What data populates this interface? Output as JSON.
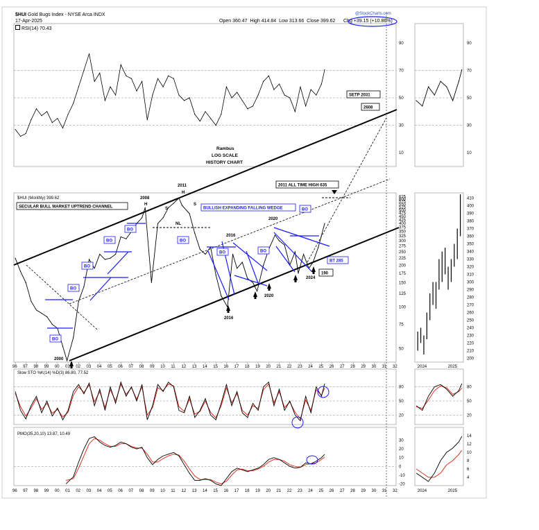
{
  "header": {
    "ticker": "$HUI",
    "name": "Gold Bugs Index - NYSE Arca",
    "exchange": "INDX",
    "date": "17-Apr-2025",
    "rsi_label": "RSI(14) 70.43",
    "open_label": "Open",
    "open": "360.47",
    "high_label": "High",
    "high": "414.84",
    "low_label": "Low",
    "low": "313.66",
    "close_label": "Close",
    "close": "399.62",
    "chg_label": "Chg",
    "chg": "+39.15 (+10.86%)",
    "watermark": "@StockCharts.com"
  },
  "colors": {
    "price": "#000000",
    "pattern_lines": "#1a1aff",
    "sto_d": "#e03020",
    "pmo_signal": "#e03020",
    "label_fill": "#ffffff"
  },
  "chart_data": [
    {
      "id": "rsi",
      "type": "line",
      "indicator": "RSI(14)",
      "value": 70.43,
      "ylim": [
        0,
        100
      ],
      "yticks": [
        10,
        30,
        50,
        70,
        90
      ],
      "reference_lines": [
        30,
        50,
        70
      ],
      "x": [
        1996,
        1996.5,
        1997,
        1997.5,
        1998,
        1998.5,
        1999,
        1999.5,
        2000,
        2000.5,
        2001,
        2001.5,
        2002,
        2002.5,
        2003,
        2003.5,
        2004,
        2004.5,
        2005,
        2005.5,
        2006,
        2006.5,
        2007,
        2007.5,
        2008,
        2008.5,
        2009,
        2009.5,
        2010,
        2010.5,
        2011,
        2011.5,
        2012,
        2012.5,
        2013,
        2013.5,
        2014,
        2014.5,
        2015,
        2015.5,
        2016,
        2016.5,
        2017,
        2017.5,
        2018,
        2018.5,
        2019,
        2019.5,
        2020,
        2020.5,
        2021,
        2021.5,
        2022,
        2022.5,
        2023,
        2023.5,
        2024,
        2024.5,
        2025,
        2025.3
      ],
      "y": [
        27,
        22,
        24,
        34,
        42,
        37,
        40,
        32,
        35,
        28,
        38,
        46,
        58,
        70,
        82,
        62,
        68,
        48,
        58,
        52,
        74,
        66,
        64,
        55,
        62,
        34,
        52,
        64,
        58,
        66,
        64,
        52,
        48,
        50,
        38,
        33,
        40,
        35,
        30,
        38,
        58,
        50,
        54,
        48,
        42,
        44,
        52,
        62,
        66,
        56,
        60,
        52,
        50,
        40,
        58,
        44,
        56,
        52,
        60,
        70.43
      ]
    },
    {
      "id": "price",
      "type": "line",
      "title": "$HUI (Monthly) 399.62",
      "scale": "log",
      "ylim": [
        40,
        650
      ],
      "yticks": [
        50,
        75,
        100,
        125,
        150,
        175,
        200,
        225,
        250,
        275,
        300,
        325,
        350,
        375,
        400,
        425,
        450,
        475,
        500,
        525,
        550,
        575,
        600,
        625
      ],
      "xticks": [
        "96",
        "97",
        "98",
        "99",
        "00",
        "01",
        "02",
        "03",
        "04",
        "05",
        "06",
        "07",
        "08",
        "09",
        "10",
        "11",
        "12",
        "13",
        "14",
        "15",
        "16",
        "17",
        "18",
        "19",
        "20",
        "21",
        "22",
        "23",
        "24",
        "25",
        "26",
        "27",
        "28",
        "29",
        "30",
        "31",
        "32"
      ],
      "x": [
        1996,
        1996.5,
        1997,
        1997.5,
        1998,
        1998.5,
        1999,
        1999.5,
        2000,
        2000.5,
        2000.9,
        2001.5,
        2002,
        2002.5,
        2003,
        2003.5,
        2004,
        2004.5,
        2005,
        2005.5,
        2006,
        2006.5,
        2007,
        2007.5,
        2008,
        2008.3,
        2008.9,
        2009.5,
        2010,
        2010.5,
        2011,
        2011.5,
        2011.8,
        2012.5,
        2013,
        2013.5,
        2014,
        2014.5,
        2015,
        2015.5,
        2016.1,
        2016.6,
        2017,
        2017.5,
        2018,
        2018.5,
        2018.9,
        2019.5,
        2020,
        2020.6,
        2021,
        2021.5,
        2022,
        2022.5,
        2022.8,
        2023.3,
        2023.8,
        2024.2,
        2024.7,
        2025.3
      ],
      "y": [
        225,
        180,
        150,
        110,
        95,
        90,
        85,
        75,
        70,
        52,
        41,
        60,
        110,
        140,
        220,
        190,
        240,
        220,
        225,
        240,
        320,
        310,
        350,
        400,
        440,
        520,
        150,
        400,
        440,
        520,
        560,
        610,
        540,
        470,
        340,
        260,
        240,
        270,
        170,
        120,
        100,
        240,
        190,
        210,
        160,
        150,
        130,
        200,
        260,
        330,
        300,
        280,
        200,
        250,
        175,
        240,
        190,
        210,
        270,
        399.62
      ]
    },
    {
      "id": "sto",
      "type": "line",
      "title": "Slow STO %K(14) %D(3) 86.80, 77.52",
      "ylim": [
        0,
        100
      ],
      "yticks": [
        20,
        50,
        80
      ],
      "series": [
        {
          "name": "%K(14)",
          "value": 86.8,
          "x": [
            1996,
            1996.5,
            1997,
            1997.5,
            1998,
            1998.5,
            1999,
            1999.5,
            2000,
            2000.5,
            2001,
            2001.5,
            2002,
            2002.5,
            2003,
            2003.5,
            2004,
            2004.5,
            2005,
            2005.5,
            2006,
            2006.5,
            2007,
            2007.5,
            2008,
            2008.5,
            2009,
            2009.5,
            2010,
            2010.5,
            2011,
            2011.5,
            2012,
            2012.5,
            2013,
            2013.5,
            2014,
            2014.5,
            2015,
            2015.5,
            2016,
            2016.5,
            2017,
            2017.5,
            2018,
            2018.5,
            2019,
            2019.5,
            2020,
            2020.5,
            2021,
            2021.5,
            2022,
            2022.5,
            2023,
            2023.5,
            2024,
            2024.5,
            2025,
            2025.3
          ],
          "y": [
            70,
            30,
            12,
            40,
            60,
            25,
            50,
            18,
            35,
            10,
            30,
            70,
            85,
            65,
            88,
            40,
            75,
            30,
            80,
            45,
            90,
            60,
            80,
            50,
            85,
            10,
            40,
            85,
            70,
            90,
            80,
            30,
            25,
            60,
            15,
            30,
            55,
            20,
            10,
            45,
            85,
            40,
            70,
            25,
            15,
            45,
            30,
            80,
            90,
            40,
            75,
            30,
            50,
            20,
            8,
            60,
            25,
            80,
            60,
            86.8
          ]
        },
        {
          "name": "%D(3)",
          "value": 77.52,
          "x": [
            1996,
            1996.5,
            1997,
            1997.5,
            1998,
            1998.5,
            1999,
            1999.5,
            2000,
            2000.5,
            2001,
            2001.5,
            2002,
            2002.5,
            2003,
            2003.5,
            2004,
            2004.5,
            2005,
            2005.5,
            2006,
            2006.5,
            2007,
            2007.5,
            2008,
            2008.5,
            2009,
            2009.5,
            2010,
            2010.5,
            2011,
            2011.5,
            2012,
            2012.5,
            2013,
            2013.5,
            2014,
            2014.5,
            2015,
            2015.5,
            2016,
            2016.5,
            2017,
            2017.5,
            2018,
            2018.5,
            2019,
            2019.5,
            2020,
            2020.5,
            2021,
            2021.5,
            2022,
            2022.5,
            2023,
            2023.5,
            2024,
            2024.5,
            2025,
            2025.3
          ],
          "y": [
            66,
            38,
            18,
            35,
            55,
            32,
            45,
            24,
            32,
            16,
            26,
            62,
            80,
            68,
            84,
            48,
            70,
            36,
            74,
            50,
            85,
            64,
            78,
            54,
            80,
            20,
            36,
            78,
            72,
            86,
            82,
            38,
            28,
            54,
            22,
            28,
            50,
            26,
            14,
            40,
            78,
            46,
            66,
            30,
            20,
            40,
            34,
            74,
            86,
            46,
            70,
            36,
            48,
            26,
            12,
            52,
            30,
            74,
            62,
            77.52
          ]
        }
      ]
    },
    {
      "id": "pmo",
      "type": "line",
      "title": "PMO(35,20,10) 13.87, 10.49",
      "ylim": [
        -22,
        40
      ],
      "yticks": [
        -20,
        -10,
        0,
        10,
        20,
        30
      ],
      "series": [
        {
          "name": "PMO(35,20,10)",
          "value": 13.87,
          "x": [
            2000.8,
            2001.5,
            2002,
            2002.5,
            2003,
            2003.5,
            2004,
            2004.5,
            2005,
            2005.5,
            2006,
            2006.5,
            2007,
            2007.5,
            2008,
            2008.5,
            2009,
            2009.5,
            2010,
            2010.5,
            2011,
            2011.5,
            2012,
            2012.5,
            2013,
            2013.5,
            2014,
            2014.5,
            2015,
            2015.5,
            2016,
            2016.5,
            2017,
            2017.5,
            2018,
            2018.5,
            2019,
            2019.5,
            2020,
            2020.5,
            2021,
            2021.5,
            2022,
            2022.5,
            2023,
            2023.5,
            2024,
            2024.5,
            2025,
            2025.3
          ],
          "y": [
            -20,
            -12,
            5,
            20,
            32,
            34,
            28,
            24,
            22,
            24,
            28,
            26,
            22,
            20,
            22,
            10,
            2,
            8,
            12,
            14,
            16,
            12,
            2,
            -8,
            -16,
            -16,
            -14,
            -16,
            -20,
            -22,
            -14,
            -6,
            -2,
            -4,
            -6,
            -4,
            -2,
            2,
            8,
            10,
            8,
            4,
            0,
            -2,
            -1,
            4,
            3,
            6,
            10,
            13.87
          ]
        },
        {
          "name": "Signal",
          "value": 10.49,
          "x": [
            2000.8,
            2001.5,
            2002,
            2002.5,
            2003,
            2003.5,
            2004,
            2004.5,
            2005,
            2005.5,
            2006,
            2006.5,
            2007,
            2007.5,
            2008,
            2008.5,
            2009,
            2009.5,
            2010,
            2010.5,
            2011,
            2011.5,
            2012,
            2012.5,
            2013,
            2013.5,
            2014,
            2014.5,
            2015,
            2015.5,
            2016,
            2016.5,
            2017,
            2017.5,
            2018,
            2018.5,
            2019,
            2019.5,
            2020,
            2020.5,
            2021,
            2021.5,
            2022,
            2022.5,
            2023,
            2023.5,
            2024,
            2024.5,
            2025,
            2025.3
          ],
          "y": [
            -16,
            -14,
            -2,
            12,
            26,
            32,
            30,
            26,
            23,
            23,
            26,
            26,
            23,
            21,
            21,
            14,
            5,
            5,
            9,
            12,
            14,
            13,
            6,
            -3,
            -11,
            -15,
            -15,
            -15,
            -18,
            -20,
            -17,
            -10,
            -4,
            -3,
            -5,
            -5,
            -3,
            0,
            5,
            8,
            8,
            6,
            2,
            0,
            -1,
            2,
            3,
            4,
            8,
            10.49
          ]
        }
      ]
    },
    {
      "id": "zoom_rsi",
      "type": "line",
      "xticks": [],
      "x": [
        2023.8,
        2024.0,
        2024.2,
        2024.4,
        2024.6,
        2024.8,
        2025.0,
        2025.2,
        2025.3
      ],
      "y": [
        48,
        44,
        58,
        52,
        62,
        58,
        48,
        62,
        70.43
      ]
    },
    {
      "id": "zoom_price",
      "type": "bar",
      "ylim": [
        195,
        415
      ],
      "yticks": [
        200,
        210,
        220,
        230,
        240,
        250,
        260,
        270,
        280,
        290,
        300,
        310,
        320,
        330,
        340,
        350,
        360,
        370,
        380,
        390,
        400,
        410
      ],
      "xticks": [
        "2024",
        "2025"
      ],
      "x": [
        2023.85,
        2023.95,
        2024.05,
        2024.15,
        2024.25,
        2024.35,
        2024.45,
        2024.55,
        2024.65,
        2024.75,
        2024.85,
        2024.95,
        2025.05,
        2025.15,
        2025.25
      ],
      "low": [
        210,
        220,
        205,
        225,
        250,
        270,
        265,
        290,
        300,
        310,
        290,
        300,
        320,
        330,
        360
      ],
      "high": [
        235,
        240,
        230,
        260,
        285,
        300,
        300,
        330,
        340,
        345,
        320,
        330,
        350,
        370,
        414.84
      ]
    },
    {
      "id": "zoom_sto",
      "type": "line",
      "series": [
        {
          "name": "%K(14)",
          "x": [
            2023.8,
            2024.0,
            2024.2,
            2024.4,
            2024.6,
            2024.8,
            2025.0,
            2025.2,
            2025.3
          ],
          "y": [
            40,
            30,
            60,
            80,
            85,
            75,
            60,
            72,
            86.8
          ]
        },
        {
          "name": "%D(3)",
          "x": [
            2023.8,
            2024.0,
            2024.2,
            2024.4,
            2024.6,
            2024.8,
            2025.0,
            2025.2,
            2025.3
          ],
          "y": [
            38,
            34,
            52,
            72,
            82,
            78,
            64,
            70,
            77.52
          ]
        }
      ]
    },
    {
      "id": "zoom_pmo",
      "type": "line",
      "ylim": [
        2,
        15
      ],
      "yticks": [
        4,
        6,
        8,
        10,
        12,
        14
      ],
      "xticks": [
        "2024",
        "2025"
      ],
      "series": [
        {
          "name": "PMO(35,20,10)",
          "x": [
            2023.8,
            2024.0,
            2024.2,
            2024.4,
            2024.6,
            2024.8,
            2025.0,
            2025.2,
            2025.3
          ],
          "y": [
            5,
            4,
            3,
            5,
            8,
            10,
            11,
            12.5,
            13.87
          ]
        },
        {
          "name": "Signal",
          "x": [
            2023.8,
            2024.0,
            2024.2,
            2024.4,
            2024.6,
            2024.8,
            2025.0,
            2025.2,
            2025.3
          ],
          "y": [
            6,
            5,
            4,
            4,
            5,
            7,
            8,
            9.5,
            10.49
          ]
        }
      ]
    }
  ],
  "annotations": {
    "rambus": [
      "Rambus",
      "LOG SCALE",
      "HISTORY CHART"
    ],
    "secular": "SECULAR BULL MARKET UPTREND CHANNEL",
    "wedge": "BULLISH EXPANDING FALLING WEDGE",
    "ath": "2011 ALL TIME HIGH 635",
    "setp": "SETP 2031",
    "target": "2608",
    "bt": "BT 285",
    "v190": "190",
    "bo": "BO",
    "nl": "NL",
    "h": "H",
    "s": "S",
    "y2008": "2008",
    "y2011": "2011",
    "y2016": "2016",
    "y2020": "2020",
    "y2024": "2024",
    "y2000": "2000"
  }
}
